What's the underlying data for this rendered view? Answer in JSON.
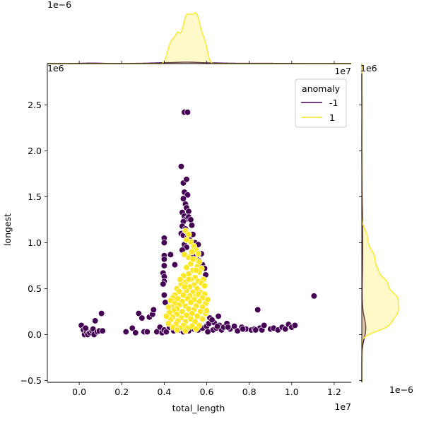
{
  "chart_data": {
    "type": "scatter",
    "title": "",
    "xlabel": "total_length",
    "ylabel": "longest",
    "x_offset_text": "1e7",
    "y_offset_text": "1e6",
    "top_marginal_offset_text": "1e−6",
    "right_marginal_offset_text": "1e−6",
    "xlim": [
      -1500000,
      12800000
    ],
    "ylim": [
      -520000,
      2950000
    ],
    "xticks": [
      {
        "value": 0,
        "label": "0.0"
      },
      {
        "value": 2000000,
        "label": "0.2"
      },
      {
        "value": 4000000,
        "label": "0.4"
      },
      {
        "value": 6000000,
        "label": "0.6"
      },
      {
        "value": 8000000,
        "label": "0.8"
      },
      {
        "value": 10000000,
        "label": "1.0"
      },
      {
        "value": 12000000,
        "label": "1.2"
      }
    ],
    "yticks": [
      {
        "value": -500000,
        "label": "−0.5"
      },
      {
        "value": 0,
        "label": "0.0"
      },
      {
        "value": 500000,
        "label": "0.5"
      },
      {
        "value": 1000000,
        "label": "1.0"
      },
      {
        "value": 1500000,
        "label": "1.5"
      },
      {
        "value": 2000000,
        "label": "2.0"
      },
      {
        "value": 2500000,
        "label": "2.5"
      }
    ],
    "grid": false,
    "legend": {
      "title": "anomaly",
      "position": "top-right",
      "entries": [
        {
          "label": "-1",
          "color": "#440154"
        },
        {
          "label": "1",
          "color": "#fde725"
        }
      ]
    },
    "marginals": {
      "top": "kde of total_length by anomaly",
      "right": "kde of longest by anomaly"
    },
    "series": [
      {
        "color": "#440154",
        "points": [
          [
            100000,
            100000
          ],
          [
            200000,
            50000
          ],
          [
            250000,
            0
          ],
          [
            350000,
            30000
          ],
          [
            400000,
            0
          ],
          [
            500000,
            20000
          ],
          [
            600000,
            40000
          ],
          [
            650000,
            60000
          ],
          [
            700000,
            0
          ],
          [
            750000,
            150000
          ],
          [
            850000,
            30000
          ],
          [
            950000,
            40000
          ],
          [
            1050000,
            230000
          ],
          [
            1100000,
            40000
          ],
          [
            300000,
            70000
          ],
          [
            2200000,
            30000
          ],
          [
            2500000,
            70000
          ],
          [
            2650000,
            20000
          ],
          [
            2800000,
            230000
          ],
          [
            2950000,
            180000
          ],
          [
            3050000,
            30000
          ],
          [
            3200000,
            30000
          ],
          [
            3300000,
            190000
          ],
          [
            3450000,
            220000
          ],
          [
            3500000,
            270000
          ],
          [
            3650000,
            30000
          ],
          [
            3800000,
            80000
          ],
          [
            3900000,
            20000
          ],
          [
            4000000,
            50000
          ],
          [
            4100000,
            30000
          ],
          [
            4950000,
            2420000
          ],
          [
            5100000,
            2420000
          ],
          [
            4800000,
            1830000
          ],
          [
            4900000,
            1650000
          ],
          [
            5050000,
            1690000
          ],
          [
            4950000,
            1550000
          ],
          [
            5100000,
            1520000
          ],
          [
            4900000,
            1480000
          ],
          [
            5000000,
            1420000
          ],
          [
            5050000,
            1380000
          ],
          [
            5150000,
            1340000
          ],
          [
            4850000,
            1330000
          ],
          [
            4950000,
            1290000
          ],
          [
            5050000,
            1260000
          ],
          [
            4900000,
            1230000
          ],
          [
            5150000,
            1280000
          ],
          [
            5250000,
            1250000
          ],
          [
            4850000,
            1180000
          ],
          [
            5000000,
            1150000
          ],
          [
            5300000,
            1190000
          ],
          [
            4800000,
            1100000
          ],
          [
            4900000,
            1080000
          ],
          [
            5100000,
            1060000
          ],
          [
            5350000,
            1090000
          ],
          [
            5200000,
            1030000
          ],
          [
            5450000,
            1000000
          ],
          [
            4950000,
            980000
          ],
          [
            5050000,
            950000
          ],
          [
            5600000,
            980000
          ],
          [
            4850000,
            920000
          ],
          [
            5300000,
            880000
          ],
          [
            5500000,
            850000
          ],
          [
            5750000,
            880000
          ],
          [
            5650000,
            800000
          ],
          [
            5800000,
            760000
          ],
          [
            5900000,
            720000
          ],
          [
            5950000,
            650000
          ],
          [
            4000000,
            1050000
          ],
          [
            4000000,
            1000000
          ],
          [
            4000000,
            860000
          ],
          [
            4000000,
            820000
          ],
          [
            4000000,
            750000
          ],
          [
            3950000,
            670000
          ],
          [
            4000000,
            630000
          ],
          [
            4000000,
            580000
          ],
          [
            3950000,
            550000
          ],
          [
            4000000,
            430000
          ],
          [
            4050000,
            350000
          ],
          [
            4300000,
            870000
          ],
          [
            4500000,
            760000
          ],
          [
            4250000,
            80000
          ],
          [
            4450000,
            40000
          ],
          [
            4700000,
            50000
          ],
          [
            4900000,
            30000
          ],
          [
            5150000,
            40000
          ],
          [
            5400000,
            60000
          ],
          [
            5600000,
            50000
          ],
          [
            5800000,
            70000
          ],
          [
            6000000,
            90000
          ],
          [
            6100000,
            120000
          ],
          [
            6150000,
            180000
          ],
          [
            6300000,
            50000
          ],
          [
            6350000,
            130000
          ],
          [
            6450000,
            70000
          ],
          [
            6550000,
            200000
          ],
          [
            6600000,
            100000
          ],
          [
            6700000,
            50000
          ],
          [
            6800000,
            80000
          ],
          [
            6950000,
            120000
          ],
          [
            7100000,
            60000
          ],
          [
            7300000,
            90000
          ],
          [
            7450000,
            40000
          ],
          [
            7650000,
            80000
          ],
          [
            7850000,
            60000
          ],
          [
            8100000,
            50000
          ],
          [
            8250000,
            60000
          ],
          [
            8400000,
            270000
          ],
          [
            8500000,
            70000
          ],
          [
            8600000,
            50000
          ],
          [
            8700000,
            100000
          ],
          [
            9000000,
            60000
          ],
          [
            9150000,
            70000
          ],
          [
            9350000,
            50000
          ],
          [
            9550000,
            80000
          ],
          [
            9700000,
            60000
          ],
          [
            9850000,
            110000
          ],
          [
            10000000,
            80000
          ],
          [
            10150000,
            100000
          ],
          [
            11050000,
            420000
          ],
          [
            6050000,
            30000
          ],
          [
            6250000,
            160000
          ],
          [
            6500000,
            90000
          ],
          [
            7000000,
            80000
          ],
          [
            7700000,
            60000
          ],
          [
            8300000,
            50000
          ]
        ]
      },
      {
        "color": "#fde725",
        "points": [
          [
            5000000,
            1130000
          ],
          [
            5150000,
            1090000
          ],
          [
            5250000,
            1010000
          ],
          [
            5050000,
            1030000
          ],
          [
            5400000,
            960000
          ],
          [
            5500000,
            920000
          ],
          [
            5300000,
            900000
          ],
          [
            5600000,
            880000
          ],
          [
            4950000,
            870000
          ],
          [
            5150000,
            840000
          ],
          [
            5450000,
            820000
          ],
          [
            5650000,
            790000
          ],
          [
            5250000,
            770000
          ],
          [
            5550000,
            740000
          ],
          [
            5050000,
            730000
          ],
          [
            5750000,
            720000
          ],
          [
            5350000,
            700000
          ],
          [
            5650000,
            680000
          ],
          [
            5150000,
            660000
          ],
          [
            4900000,
            640000
          ],
          [
            5450000,
            620000
          ],
          [
            5850000,
            600000
          ],
          [
            5250000,
            600000
          ],
          [
            5600000,
            580000
          ],
          [
            5000000,
            570000
          ],
          [
            5750000,
            560000
          ],
          [
            4800000,
            550000
          ],
          [
            5400000,
            540000
          ],
          [
            5900000,
            530000
          ],
          [
            5200000,
            520000
          ],
          [
            4600000,
            500000
          ],
          [
            5550000,
            500000
          ],
          [
            5050000,
            480000
          ],
          [
            4700000,
            470000
          ],
          [
            5350000,
            460000
          ],
          [
            5700000,
            460000
          ],
          [
            5900000,
            440000
          ],
          [
            4500000,
            430000
          ],
          [
            4900000,
            430000
          ],
          [
            5200000,
            420000
          ],
          [
            5500000,
            420000
          ],
          [
            4400000,
            400000
          ],
          [
            5800000,
            400000
          ],
          [
            4650000,
            390000
          ],
          [
            5100000,
            390000
          ],
          [
            5400000,
            380000
          ],
          [
            4300000,
            370000
          ],
          [
            4850000,
            360000
          ],
          [
            5650000,
            360000
          ],
          [
            5250000,
            350000
          ],
          [
            4500000,
            340000
          ],
          [
            5950000,
            340000
          ],
          [
            4700000,
            320000
          ],
          [
            5000000,
            310000
          ],
          [
            5500000,
            310000
          ],
          [
            4350000,
            300000
          ],
          [
            5800000,
            300000
          ],
          [
            4600000,
            280000
          ],
          [
            5150000,
            280000
          ],
          [
            5400000,
            270000
          ],
          [
            4450000,
            260000
          ],
          [
            4850000,
            250000
          ],
          [
            5700000,
            250000
          ],
          [
            4250000,
            240000
          ],
          [
            5300000,
            230000
          ],
          [
            5950000,
            230000
          ],
          [
            4600000,
            220000
          ],
          [
            5050000,
            210000
          ],
          [
            5550000,
            200000
          ],
          [
            4400000,
            190000
          ],
          [
            4800000,
            180000
          ],
          [
            5250000,
            170000
          ],
          [
            5800000,
            170000
          ],
          [
            4300000,
            160000
          ],
          [
            4650000,
            150000
          ],
          [
            5000000,
            140000
          ],
          [
            5450000,
            140000
          ],
          [
            4200000,
            120000
          ],
          [
            4550000,
            110000
          ],
          [
            4900000,
            100000
          ],
          [
            5300000,
            90000
          ],
          [
            5650000,
            100000
          ],
          [
            4400000,
            80000
          ],
          [
            4750000,
            70000
          ],
          [
            5100000,
            70000
          ],
          [
            5500000,
            60000
          ],
          [
            4600000,
            50000
          ],
          [
            5000000,
            40000
          ],
          [
            4200000,
            300000
          ],
          [
            4100000,
            200000
          ],
          [
            6050000,
            380000
          ],
          [
            6000000,
            260000
          ],
          [
            4950000,
            520000
          ],
          [
            5600000,
            440000
          ],
          [
            5150000,
            600000
          ],
          [
            4750000,
            600000
          ],
          [
            5350000,
            820000
          ],
          [
            5500000,
            700000
          ]
        ]
      }
    ]
  }
}
